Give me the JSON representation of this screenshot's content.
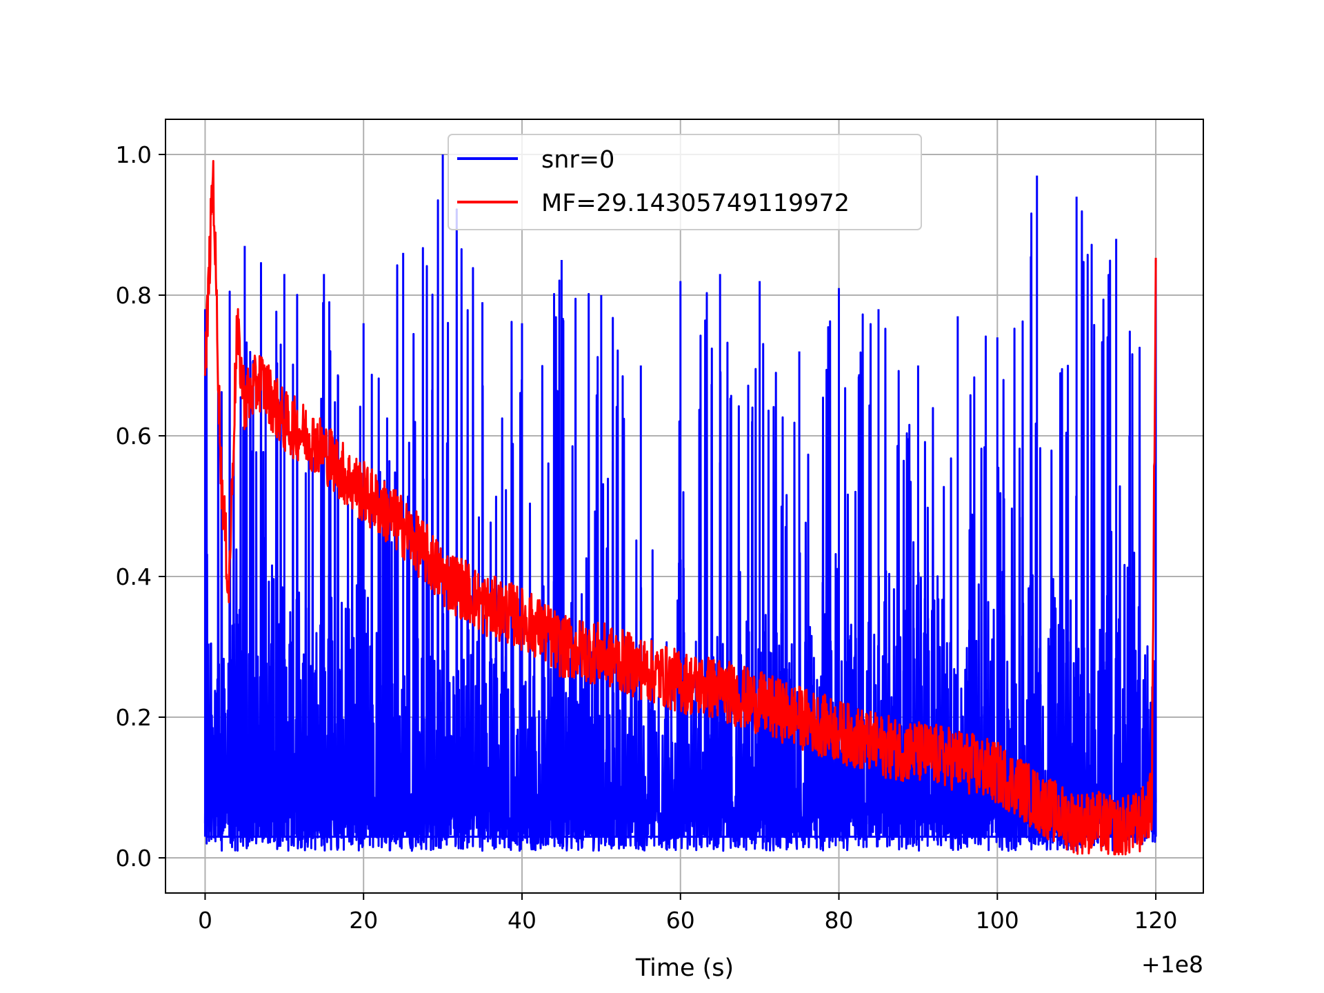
{
  "chart_data": {
    "type": "line",
    "title": "",
    "xlabel": "Time (s)",
    "ylabel": "",
    "x_offset_label": "+1e8",
    "xlim": [
      -5,
      126
    ],
    "ylim": [
      -0.05,
      1.05
    ],
    "xticks": [
      0,
      20,
      40,
      60,
      80,
      100,
      120
    ],
    "yticks": [
      0.0,
      0.2,
      0.4,
      0.6,
      0.8,
      1.0
    ],
    "xtick_labels": [
      "0",
      "20",
      "40",
      "60",
      "80",
      "100",
      "120"
    ],
    "ytick_labels": [
      "0.0",
      "0.2",
      "0.4",
      "0.6",
      "0.8",
      "1.0"
    ],
    "grid": true,
    "legend_position": "upper center",
    "series": [
      {
        "name": "snr=0",
        "color": "#0000ff",
        "x": [
          0,
          5,
          10,
          15,
          20,
          25,
          30,
          35,
          40,
          45,
          50,
          55,
          60,
          65,
          70,
          75,
          80,
          85,
          90,
          95,
          100,
          105,
          110,
          115,
          120
        ],
        "y_low": [
          0.01,
          0.01,
          0.01,
          0.01,
          0.01,
          0.01,
          0.01,
          0.01,
          0.01,
          0.01,
          0.01,
          0.01,
          0.01,
          0.01,
          0.01,
          0.01,
          0.01,
          0.01,
          0.01,
          0.01,
          0.01,
          0.01,
          0.01,
          0.01,
          0.02
        ],
        "y_high": [
          0.78,
          0.87,
          0.83,
          0.83,
          0.76,
          0.86,
          1.0,
          0.79,
          0.76,
          0.85,
          0.8,
          0.7,
          0.82,
          0.83,
          0.82,
          0.72,
          0.81,
          0.78,
          0.7,
          0.77,
          0.74,
          0.97,
          0.94,
          0.88,
          0.85
        ],
        "y_dense_top": [
          0.55,
          0.55,
          0.52,
          0.48,
          0.46,
          0.44,
          0.43,
          0.4,
          0.38,
          0.36,
          0.35,
          0.34,
          0.35,
          0.37,
          0.38,
          0.4,
          0.41,
          0.43,
          0.45,
          0.46,
          0.47,
          0.47,
          0.48,
          0.45,
          0.4
        ]
      },
      {
        "name": "MF=29.14305749119972",
        "color": "#ff0000",
        "x": [
          0,
          1,
          2,
          3,
          4,
          5,
          7,
          10,
          13,
          15,
          18,
          20,
          22,
          25,
          28,
          30,
          33,
          35,
          38,
          40,
          43,
          45,
          50,
          55,
          60,
          65,
          70,
          75,
          80,
          85,
          90,
          95,
          100,
          103,
          105,
          108,
          110,
          113,
          115,
          118,
          119.5,
          120
        ],
        "y": [
          0.68,
          0.98,
          0.55,
          0.38,
          0.75,
          0.65,
          0.68,
          0.62,
          0.6,
          0.58,
          0.54,
          0.52,
          0.5,
          0.47,
          0.43,
          0.4,
          0.38,
          0.36,
          0.35,
          0.34,
          0.32,
          0.3,
          0.29,
          0.27,
          0.25,
          0.24,
          0.22,
          0.2,
          0.18,
          0.16,
          0.15,
          0.14,
          0.12,
          0.1,
          0.08,
          0.06,
          0.05,
          0.05,
          0.04,
          0.05,
          0.08,
          0.85
        ],
        "noise_amplitude": 0.045
      }
    ]
  }
}
